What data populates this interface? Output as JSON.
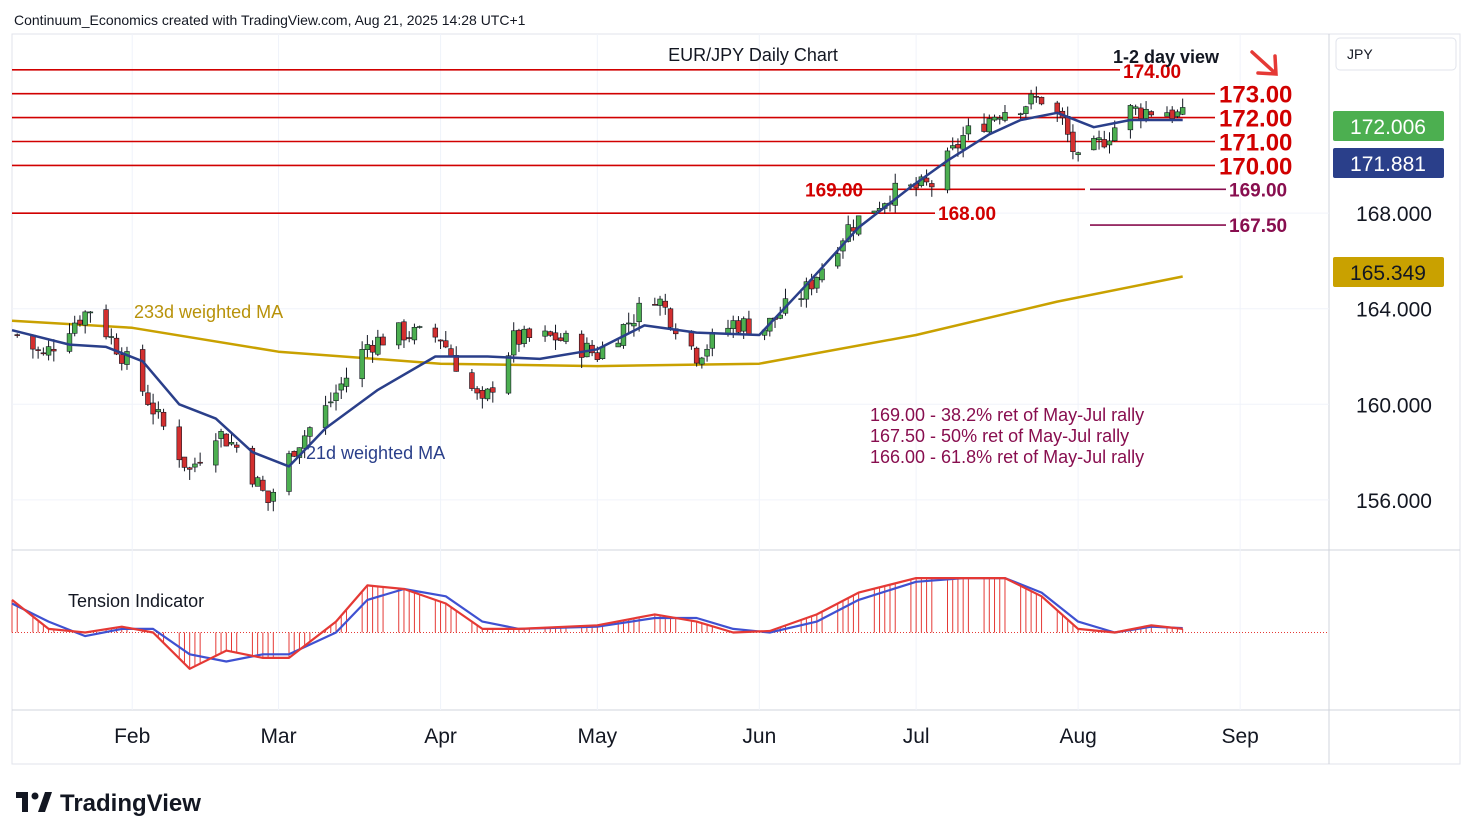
{
  "header": {
    "attribution": "Continuum_Economics created with TradingView.com, Aug 21, 2025 14:28 UTC+1"
  },
  "brand": {
    "logo_text": "TradingView"
  },
  "colors": {
    "resistance": "#d10000",
    "support_line": "#880e4f",
    "ma21": "#2a3f8a",
    "ma233": "#c9a100",
    "up_candle": "#4caf50",
    "down_candle": "#d32f2f",
    "price_badge": "#4caf50",
    "ma21_badge": "#2a3f8a",
    "ma233_badge": "#c9a100",
    "tension_line": "#e53935",
    "tension_signal": "#3f51d1"
  },
  "chart_data": {
    "type": "candlestick",
    "title": "EUR/JPY Daily Chart",
    "view_label": "1-2 day view",
    "view_direction": "down",
    "currency": "JPY",
    "x_ticks": [
      "Feb",
      "Mar",
      "Apr",
      "May",
      "Jun",
      "Jul",
      "Aug",
      "Sep"
    ],
    "x_tick_dates": [
      "2025-02-01",
      "2025-03-01",
      "2025-04-01",
      "2025-05-01",
      "2025-06-01",
      "2025-07-01",
      "2025-08-01",
      "2025-09-01"
    ],
    "y_ticks": [
      "168.000",
      "164.000",
      "160.000",
      "156.000"
    ],
    "y_tick_values": [
      168,
      164,
      160,
      156
    ],
    "ylim": [
      153.9,
      175.5
    ],
    "xlim": [
      "2025-01-09",
      "2025-09-18"
    ],
    "last_price": "172.006",
    "ma21_value": "171.881",
    "ma233_value": "165.349",
    "resistance_levels": [
      {
        "value": 174.0,
        "label": "174.00"
      },
      {
        "value": 173.0,
        "label": "173.00"
      },
      {
        "value": 172.0,
        "label": "172.00"
      },
      {
        "value": 171.0,
        "label": "171.00"
      },
      {
        "value": 170.0,
        "label": "170.00"
      },
      {
        "value": 169.0,
        "label": "169.00"
      },
      {
        "value": 168.0,
        "label": "168.00"
      }
    ],
    "support_levels": [
      {
        "value": 169.0,
        "label": "169.00"
      },
      {
        "value": 167.5,
        "label": "167.50"
      }
    ],
    "notes": [
      "169.00 - 38.2% ret of May-Jul rally",
      "167.50 - 50% ret of May-Jul rally",
      "166.00 - 61.8% ret of May-Jul rally"
    ],
    "series": [
      {
        "name": "21d weighted MA",
        "x": [
          "2025-01-09",
          "2025-01-20",
          "2025-01-27",
          "2025-02-03",
          "2025-02-10",
          "2025-02-17",
          "2025-02-24",
          "2025-03-03",
          "2025-03-10",
          "2025-03-20",
          "2025-03-31",
          "2025-04-10",
          "2025-04-20",
          "2025-05-01",
          "2025-05-10",
          "2025-05-20",
          "2025-06-01",
          "2025-06-10",
          "2025-06-20",
          "2025-06-30",
          "2025-07-07",
          "2025-07-15",
          "2025-07-21",
          "2025-07-28",
          "2025-08-04",
          "2025-08-11",
          "2025-08-21"
        ],
        "values": [
          163.1,
          162.5,
          162.4,
          161.8,
          160.0,
          159.4,
          158.0,
          157.4,
          159.0,
          160.6,
          162.0,
          162.0,
          161.9,
          162.3,
          163.3,
          163.0,
          162.9,
          165.0,
          167.4,
          169.1,
          170.2,
          171.3,
          171.9,
          172.2,
          171.6,
          171.9,
          171.9
        ]
      },
      {
        "name": "233d weighted MA",
        "x": [
          "2025-01-09",
          "2025-02-01",
          "2025-03-01",
          "2025-04-01",
          "2025-05-01",
          "2025-06-01",
          "2025-07-01",
          "2025-07-28",
          "2025-08-21"
        ],
        "values": [
          163.5,
          163.2,
          162.2,
          161.7,
          161.6,
          161.7,
          162.9,
          164.3,
          165.35
        ]
      }
    ],
    "tension_indicator": {
      "name": "Tension Indicator",
      "ylim": [
        -100,
        100
      ],
      "x": [
        "2025-01-09",
        "2025-01-16",
        "2025-01-23",
        "2025-01-30",
        "2025-02-05",
        "2025-02-12",
        "2025-02-19",
        "2025-02-26",
        "2025-03-03",
        "2025-03-12",
        "2025-03-18",
        "2025-03-25",
        "2025-04-02",
        "2025-04-09",
        "2025-04-16",
        "2025-05-01",
        "2025-05-12",
        "2025-05-20",
        "2025-05-27",
        "2025-06-03",
        "2025-06-12",
        "2025-06-20",
        "2025-07-01",
        "2025-07-10",
        "2025-07-18",
        "2025-07-25",
        "2025-08-01",
        "2025-08-08",
        "2025-08-15",
        "2025-08-21"
      ],
      "line": [
        45,
        5,
        0,
        8,
        0,
        -50,
        -25,
        -35,
        -35,
        15,
        65,
        60,
        40,
        5,
        5,
        10,
        25,
        15,
        0,
        2,
        25,
        55,
        75,
        75,
        75,
        50,
        5,
        0,
        10,
        5
      ],
      "signal": [
        40,
        15,
        -5,
        5,
        5,
        -30,
        -40,
        -30,
        -30,
        0,
        45,
        60,
        50,
        15,
        5,
        8,
        20,
        20,
        5,
        0,
        15,
        45,
        70,
        75,
        75,
        55,
        15,
        0,
        8,
        6
      ]
    }
  }
}
